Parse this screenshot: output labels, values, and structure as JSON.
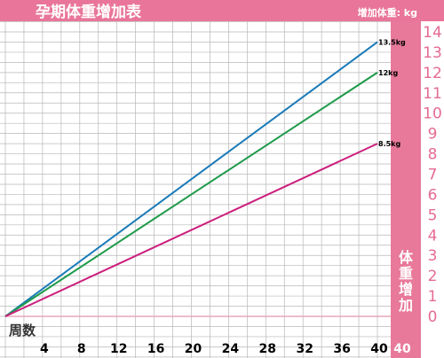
{
  "title": "孕期体重增加表",
  "unit_label": "增加体重: kg",
  "xlabel": "周数",
  "ylabel": "体重增加",
  "colors": {
    "header": "#e9769a",
    "panel": "#e8799b",
    "grid": "#b8b8b8",
    "baseline": "#e5a7ba",
    "tick_y": "#e56b91",
    "tick_x": "#000000"
  },
  "chart_data": {
    "type": "line",
    "title": "孕期体重增加表",
    "xlabel": "周数",
    "ylabel": "体重增加",
    "unit": "增加体重: kg",
    "x_ticks": [
      "4",
      "8",
      "12",
      "16",
      "20",
      "24",
      "28",
      "32",
      "36",
      "40",
      "40"
    ],
    "y_ticks": [
      "0",
      "1",
      "2",
      "3",
      "4",
      "5",
      "6",
      "7",
      "8",
      "9",
      "10",
      "11",
      "12",
      "13",
      "14"
    ],
    "xlim": [
      0,
      40
    ],
    "ylim": [
      0,
      14
    ],
    "grid": true,
    "series": [
      {
        "name": "13.5kg",
        "color": "#1a7ab8",
        "x": [
          0,
          40
        ],
        "y": [
          0,
          13.5
        ]
      },
      {
        "name": "12kg",
        "color": "#1f9a4b",
        "x": [
          0,
          40
        ],
        "y": [
          0,
          12
        ]
      },
      {
        "name": "8.5kg",
        "color": "#cc1e7d",
        "x": [
          0,
          40
        ],
        "y": [
          0,
          8.5
        ]
      }
    ]
  }
}
